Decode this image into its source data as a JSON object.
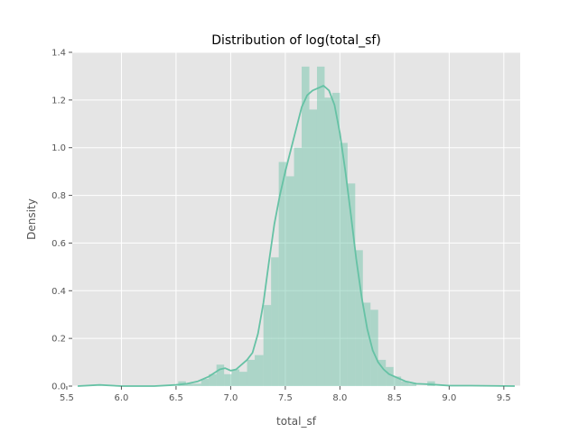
{
  "chart_data": {
    "type": "histogram",
    "title": "Distribution of log(total_sf)",
    "xlabel": "total_sf",
    "ylabel": "Density",
    "xlim": [
      5.55,
      9.65
    ],
    "ylim": [
      0,
      1.4
    ],
    "xticks": [
      "5.5",
      "6.0",
      "6.5",
      "7.0",
      "7.5",
      "8.0",
      "8.5",
      "9.0",
      "9.5"
    ],
    "xtick_values": [
      5.5,
      6.0,
      6.5,
      7.0,
      7.5,
      8.0,
      8.5,
      9.0,
      9.5
    ],
    "yticks": [
      "0.0",
      "0.2",
      "0.4",
      "0.6",
      "0.8",
      "1.0",
      "1.2",
      "1.4"
    ],
    "ytick_values": [
      0.0,
      0.2,
      0.4,
      0.6,
      0.8,
      1.0,
      1.2,
      1.4
    ],
    "grid": true,
    "colors": {
      "bar": "#66c2a5",
      "bar_opacity": 0.45,
      "kde": "#66c2a5",
      "background": "#e5e5e5",
      "grid": "#ffffff"
    },
    "bins": [
      {
        "x0": 6.52,
        "x1": 6.59,
        "density": 0.02
      },
      {
        "x0": 6.59,
        "x1": 6.66,
        "density": 0.01
      },
      {
        "x0": 6.66,
        "x1": 6.73,
        "density": 0.01
      },
      {
        "x0": 6.73,
        "x1": 6.8,
        "density": 0.03
      },
      {
        "x0": 6.8,
        "x1": 6.87,
        "density": 0.05
      },
      {
        "x0": 6.87,
        "x1": 6.94,
        "density": 0.09
      },
      {
        "x0": 6.94,
        "x1": 7.01,
        "density": 0.05
      },
      {
        "x0": 7.01,
        "x1": 7.08,
        "density": 0.07
      },
      {
        "x0": 7.08,
        "x1": 7.15,
        "density": 0.06
      },
      {
        "x0": 7.15,
        "x1": 7.22,
        "density": 0.11
      },
      {
        "x0": 7.22,
        "x1": 7.3,
        "density": 0.13
      },
      {
        "x0": 7.3,
        "x1": 7.37,
        "density": 0.34
      },
      {
        "x0": 7.37,
        "x1": 7.44,
        "density": 0.54
      },
      {
        "x0": 7.44,
        "x1": 7.51,
        "density": 0.94
      },
      {
        "x0": 7.51,
        "x1": 7.58,
        "density": 0.88
      },
      {
        "x0": 7.58,
        "x1": 7.65,
        "density": 1.0
      },
      {
        "x0": 7.65,
        "x1": 7.72,
        "density": 1.34
      },
      {
        "x0": 7.72,
        "x1": 7.79,
        "density": 1.16
      },
      {
        "x0": 7.79,
        "x1": 7.86,
        "density": 1.34
      },
      {
        "x0": 7.86,
        "x1": 7.93,
        "density": 1.21
      },
      {
        "x0": 7.93,
        "x1": 8.0,
        "density": 1.23
      },
      {
        "x0": 8.0,
        "x1": 8.07,
        "density": 1.02
      },
      {
        "x0": 8.07,
        "x1": 8.14,
        "density": 0.85
      },
      {
        "x0": 8.14,
        "x1": 8.21,
        "density": 0.57
      },
      {
        "x0": 8.21,
        "x1": 8.28,
        "density": 0.35
      },
      {
        "x0": 8.28,
        "x1": 8.35,
        "density": 0.32
      },
      {
        "x0": 8.35,
        "x1": 8.42,
        "density": 0.11
      },
      {
        "x0": 8.42,
        "x1": 8.49,
        "density": 0.08
      },
      {
        "x0": 8.49,
        "x1": 8.56,
        "density": 0.04
      },
      {
        "x0": 8.56,
        "x1": 8.63,
        "density": 0.02
      },
      {
        "x0": 8.63,
        "x1": 8.7,
        "density": 0.01
      },
      {
        "x0": 8.8,
        "x1": 8.87,
        "density": 0.02
      }
    ],
    "kde": {
      "x": [
        5.6,
        5.8,
        6.0,
        6.3,
        6.5,
        6.6,
        6.7,
        6.8,
        6.9,
        6.95,
        7.0,
        7.05,
        7.1,
        7.15,
        7.2,
        7.25,
        7.3,
        7.35,
        7.4,
        7.45,
        7.5,
        7.55,
        7.6,
        7.65,
        7.7,
        7.75,
        7.8,
        7.85,
        7.9,
        7.95,
        8.0,
        8.05,
        8.1,
        8.15,
        8.2,
        8.25,
        8.3,
        8.35,
        8.4,
        8.45,
        8.5,
        8.6,
        8.7,
        8.8,
        8.9,
        9.0,
        9.2,
        9.4,
        9.6
      ],
      "y": [
        0.0,
        0.005,
        0.0,
        0.0,
        0.005,
        0.01,
        0.02,
        0.04,
        0.07,
        0.075,
        0.065,
        0.07,
        0.09,
        0.11,
        0.14,
        0.22,
        0.35,
        0.52,
        0.68,
        0.8,
        0.9,
        0.99,
        1.08,
        1.17,
        1.22,
        1.24,
        1.25,
        1.26,
        1.24,
        1.18,
        1.06,
        0.9,
        0.72,
        0.53,
        0.37,
        0.24,
        0.15,
        0.1,
        0.07,
        0.05,
        0.04,
        0.02,
        0.01,
        0.008,
        0.005,
        0.002,
        0.002,
        0.001,
        0.0
      ]
    }
  }
}
